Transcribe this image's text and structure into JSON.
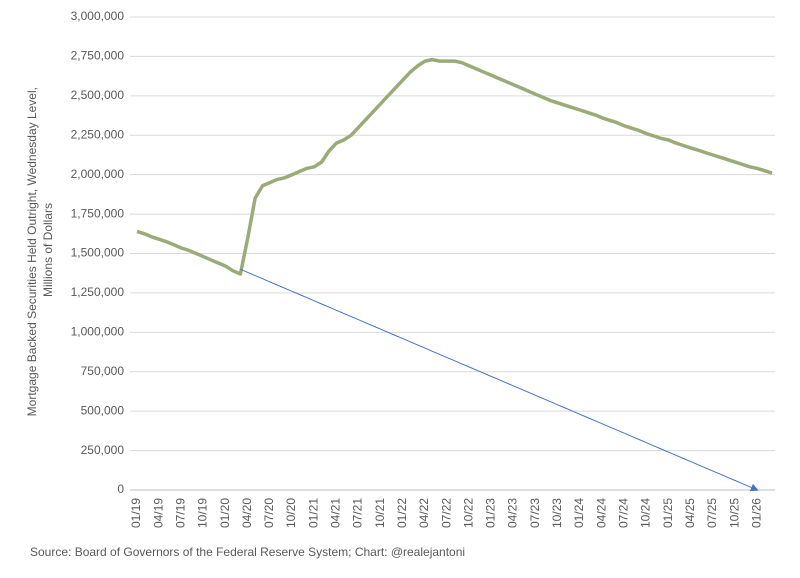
{
  "chart_data": {
    "type": "line",
    "y_label": [
      "Mortgage Backed Securities Held Outright, Wednesday Level,",
      "Millions of Dollars"
    ],
    "source": "Source: Board of Governors of the Federal Reserve System; Chart: @realejantoni",
    "categories": [
      "01/19",
      null,
      null,
      "04/19",
      null,
      null,
      "07/19",
      null,
      null,
      "10/19",
      null,
      null,
      "01/20",
      null,
      null,
      "04/20",
      null,
      null,
      "07/20",
      null,
      null,
      "10/20",
      null,
      null,
      "01/21",
      null,
      null,
      "04/21",
      null,
      null,
      "07/21",
      null,
      null,
      "10/21",
      null,
      null,
      "01/22",
      null,
      null,
      "04/22",
      null,
      null,
      "07/22",
      null,
      null,
      "10/22",
      null,
      null,
      "01/23",
      null,
      null,
      "04/23",
      null,
      null,
      "07/23",
      null,
      null,
      "10/23",
      null,
      null,
      "01/24",
      null,
      null,
      "04/24",
      null,
      null,
      "07/24",
      null,
      null,
      "10/24",
      null,
      null,
      "01/25",
      null,
      null,
      "04/25",
      null,
      null,
      "07/25",
      null,
      null,
      "10/25",
      null,
      null,
      "01/26",
      null,
      null
    ],
    "series": [
      {
        "color": "#9aab78",
        "values": [
          1640000,
          1625000,
          1605000,
          1590000,
          1575000,
          1555000,
          1535000,
          1520000,
          1500000,
          1480000,
          1460000,
          1440000,
          1420000,
          1390000,
          1370000,
          1600000,
          1850000,
          1930000,
          1950000,
          1970000,
          1980000,
          2000000,
          2020000,
          2040000,
          2050000,
          2080000,
          2150000,
          2200000,
          2220000,
          2250000,
          2300000,
          2350000,
          2400000,
          2450000,
          2500000,
          2550000,
          2600000,
          2650000,
          2690000,
          2720000,
          2730000,
          2720000,
          2720000,
          2720000,
          2710000,
          2690000,
          2670000,
          2650000,
          2630000,
          2610000,
          2590000,
          2570000,
          2550000,
          2530000,
          2510000,
          2490000,
          2470000,
          2455000,
          2440000,
          2425000,
          2410000,
          2395000,
          2380000,
          2360000,
          2345000,
          2330000,
          2310000,
          2295000,
          2280000,
          2260000,
          2245000,
          2230000,
          2220000,
          2200000,
          2185000,
          2170000,
          2155000,
          2140000,
          2125000,
          2110000,
          2095000,
          2080000,
          2065000,
          2050000,
          2040000,
          2025000,
          2010000
        ]
      },
      {
        "color": "#4472c4",
        "arrow": true,
        "values": [
          null,
          null,
          null,
          null,
          null,
          null,
          null,
          null,
          null,
          null,
          null,
          null,
          null,
          null,
          1400000,
          1380000,
          1360000,
          1340000,
          1320000,
          1300000,
          1280000,
          1260000,
          1240000,
          1220000,
          1200000,
          1180000,
          1160000,
          1140000,
          1120000,
          1100000,
          1080000,
          1060000,
          1040000,
          1020000,
          1000000,
          980000,
          960000,
          940000,
          920000,
          900000,
          880000,
          860000,
          840000,
          820000,
          800000,
          780000,
          760000,
          740000,
          720000,
          700000,
          680000,
          660000,
          640000,
          620000,
          600000,
          580000,
          560000,
          540000,
          520000,
          500000,
          480000,
          460000,
          440000,
          420000,
          400000,
          380000,
          360000,
          340000,
          320000,
          300000,
          280000,
          260000,
          240000,
          220000,
          200000,
          180000,
          160000,
          140000,
          120000,
          100000,
          80000,
          60000,
          40000,
          20000,
          0,
          null,
          null
        ]
      }
    ],
    "ylim": [
      0,
      3000000
    ],
    "yticks": [
      0,
      {
        "value": 250000,
        "label": "250,000"
      },
      {
        "value": 500000,
        "label": "500,000"
      },
      {
        "value": 750000,
        "label": "750,000"
      },
      {
        "value": 1000000,
        "label": "1,000,000"
      },
      {
        "value": 1250000,
        "label": "1,250,000"
      },
      {
        "value": 1500000,
        "label": "1,500,000"
      },
      {
        "value": 1750000,
        "label": "1,750,000"
      },
      {
        "value": 2000000,
        "label": "2,000,000"
      },
      {
        "value": 2250000,
        "label": "2,250,000"
      },
      {
        "value": 2500000,
        "label": "2,500,000"
      },
      {
        "value": 2750000,
        "label": "2,750,000"
      },
      {
        "value": 3000000,
        "label": "3,000,000"
      }
    ],
    "grid": true
  }
}
